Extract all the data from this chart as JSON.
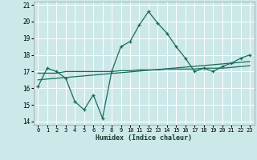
{
  "xlabel": "Humidex (Indice chaleur)",
  "bg_color": "#cce8e8",
  "grid_color": "#ffffff",
  "line_color": "#1a6b5a",
  "xlim": [
    -0.5,
    23.5
  ],
  "ylim": [
    13.8,
    21.2
  ],
  "xticks": [
    0,
    1,
    2,
    3,
    4,
    5,
    6,
    7,
    8,
    9,
    10,
    11,
    12,
    13,
    14,
    15,
    16,
    17,
    18,
    19,
    20,
    21,
    22,
    23
  ],
  "yticks": [
    14,
    15,
    16,
    17,
    18,
    19,
    20,
    21
  ],
  "series1_x": [
    0,
    1,
    2,
    3,
    4,
    5,
    6,
    7,
    8,
    9,
    10,
    11,
    12,
    13,
    14,
    15,
    16,
    17,
    18,
    19,
    20,
    21,
    22,
    23
  ],
  "series1_y": [
    16.1,
    17.2,
    17.0,
    16.6,
    15.2,
    14.7,
    15.6,
    14.2,
    17.0,
    18.5,
    18.8,
    19.8,
    20.6,
    19.9,
    19.3,
    18.5,
    17.8,
    17.0,
    17.2,
    17.0,
    17.3,
    17.5,
    17.8,
    18.0
  ],
  "series2_x": [
    0,
    23
  ],
  "series2_y": [
    16.5,
    17.6
  ],
  "series3_x": [
    0,
    1,
    2,
    3,
    4,
    5,
    6,
    7,
    8,
    9,
    10,
    11,
    12,
    13,
    14,
    15,
    16,
    17,
    18,
    19,
    20,
    21,
    22,
    23
  ],
  "series3_y": [
    16.9,
    16.9,
    16.9,
    17.0,
    17.0,
    17.0,
    17.0,
    17.0,
    17.0,
    17.05,
    17.05,
    17.1,
    17.1,
    17.1,
    17.15,
    17.15,
    17.15,
    17.15,
    17.2,
    17.2,
    17.2,
    17.25,
    17.3,
    17.35
  ]
}
